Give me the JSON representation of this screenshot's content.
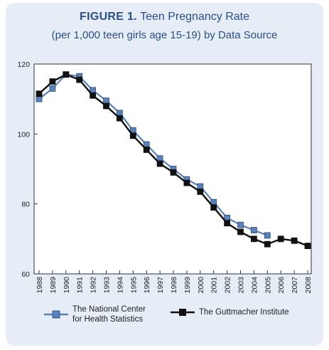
{
  "figure": {
    "label": "FIGURE 1.",
    "title": "Teen Pregnancy Rate",
    "subtitle": "(per 1,000 teen girls age 15-19) by Data Source"
  },
  "colors": {
    "background": "#e6edf7",
    "nchs": "#5b82b8",
    "guttmacher": "#111111",
    "title": "#2a4f86"
  },
  "legend": {
    "nchs_line1": "The National Center",
    "nchs_line2": "for Health Statistics",
    "guttmacher": "The Guttmacher Institute"
  },
  "chart_data": {
    "type": "line",
    "x": [
      1988,
      1989,
      1990,
      1991,
      1992,
      1993,
      1994,
      1995,
      1996,
      1997,
      1998,
      1999,
      2000,
      2001,
      2002,
      2003,
      2004,
      2005,
      2006,
      2007,
      2008
    ],
    "x_tick_labels": [
      "1988",
      "1989",
      "1990",
      "1991",
      "1992",
      "1993",
      "1994",
      "1995",
      "1996",
      "1997",
      "1998",
      "1999",
      "2000",
      "2001",
      "2002",
      "2003",
      "2004",
      "2005",
      "2006",
      "2007",
      "2008"
    ],
    "y_ticks": [
      60,
      80,
      100,
      120
    ],
    "y_tick_labels": [
      "60",
      "80",
      "100",
      "120"
    ],
    "ylim": [
      60,
      120
    ],
    "series": [
      {
        "name": "The National Center for Health Statistics",
        "color": "#5b82b8",
        "marker": "square",
        "values": [
          110,
          113,
          117,
          116.5,
          112.5,
          109.5,
          106,
          101,
          97,
          93,
          90,
          87,
          85,
          80.5,
          76,
          74,
          72.5,
          71,
          null,
          null,
          null
        ]
      },
      {
        "name": "The Guttmacher Institute",
        "color": "#111111",
        "marker": "square",
        "values": [
          111.5,
          115,
          117,
          115.5,
          111,
          108,
          104.5,
          99.5,
          95.5,
          91.5,
          89,
          86,
          83.5,
          79,
          74.5,
          72,
          70,
          68.5,
          70,
          69.5,
          68
        ]
      }
    ],
    "grid": false,
    "legend_position": "bottom"
  }
}
